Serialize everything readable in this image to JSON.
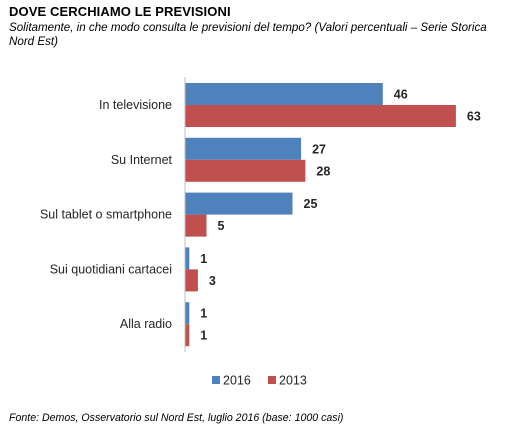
{
  "title": "DOVE CERCHIAMO LE PREVISIONI",
  "subtitle": "Solitamente, in che modo consulta le previsioni del tempo? (Valori percentuali – Serie Storica Nord Est)",
  "source": "Fonte: Demos, Osservatorio sul Nord Est, luglio  2016 (base: 1000 casi)",
  "chart_data": {
    "type": "bar",
    "orientation": "horizontal",
    "categories": [
      "In televisione",
      "Su Internet",
      "Sul tablet o smartphone",
      "Sui quotidiani cartacei",
      "Alla radio"
    ],
    "series": [
      {
        "name": "2016",
        "values": [
          46,
          27,
          25,
          1,
          1
        ],
        "color": "#4F81BD"
      },
      {
        "name": "2013",
        "values": [
          63,
          28,
          5,
          3,
          1
        ],
        "color": "#C0504D"
      }
    ],
    "title": "DOVE CERCHIAMO LE PREVISIONI",
    "xlim": [
      0,
      70
    ],
    "grid": false,
    "legend": "bottom"
  }
}
